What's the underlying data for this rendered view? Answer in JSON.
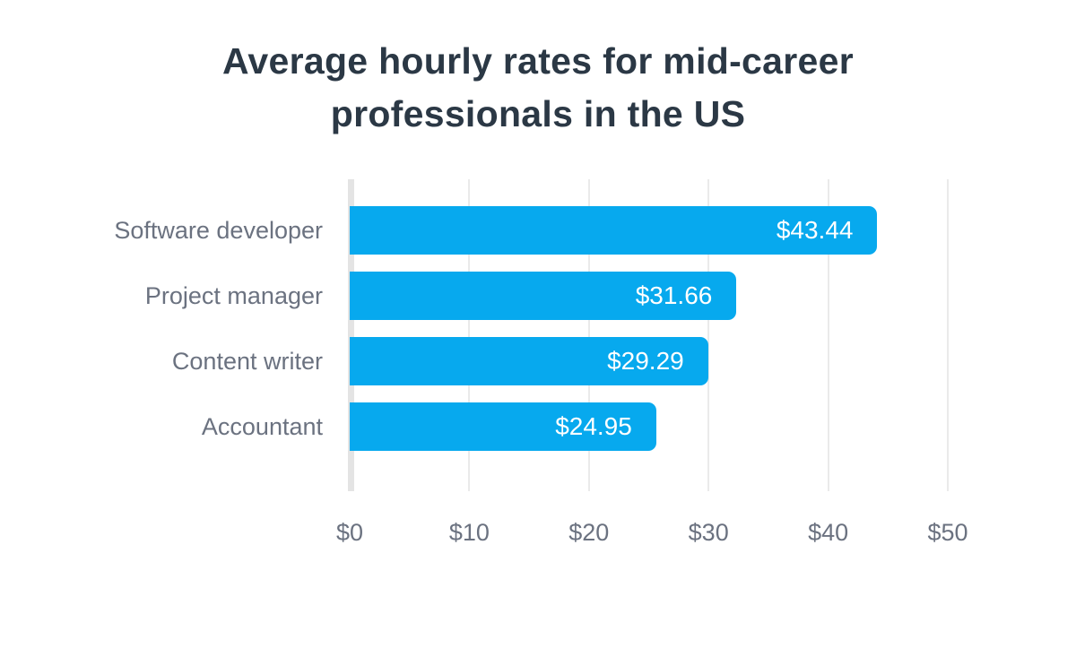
{
  "chart_data": {
    "type": "bar",
    "orientation": "horizontal",
    "title": "Average hourly rates for mid-career professionals in the US",
    "title_lines": [
      "Average hourly rates for mid-career",
      "professionals in the US"
    ],
    "categories": [
      "Software developer",
      "Project manager",
      "Content writer",
      "Accountant"
    ],
    "values": [
      43.44,
      31.66,
      29.29,
      24.95
    ],
    "value_labels": [
      "$43.44",
      "$31.66",
      "$29.29",
      "$24.95"
    ],
    "x_ticks": [
      "$0",
      "$10",
      "$20",
      "$30",
      "$40",
      "$50"
    ],
    "x_tick_values": [
      0,
      10,
      20,
      30,
      40,
      50
    ],
    "xlim": [
      0,
      50
    ],
    "xlabel": "",
    "ylabel": "",
    "grid": true,
    "legend": false,
    "colors": {
      "bar": "#07a9ee",
      "bar_value_text": "#ffffff",
      "title": "#2b3845",
      "axis_labels": "#6b7280",
      "gridline": "#eaeaea",
      "axis_line": "#e4e4e4",
      "background": "#ffffff"
    }
  }
}
